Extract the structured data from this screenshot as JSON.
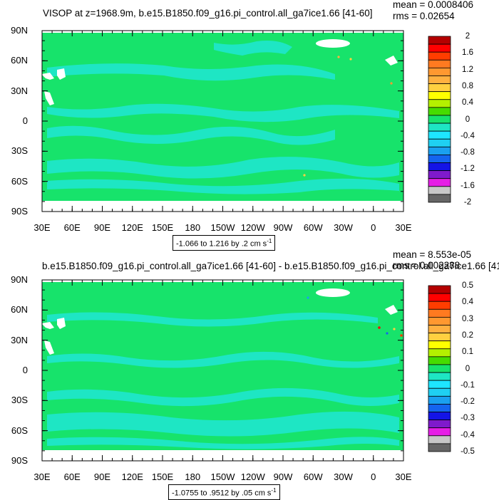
{
  "colors": {
    "ocean_main": "#17e36b",
    "ocean_light": "#1ee6c4",
    "land": "#ffffff",
    "frame": "#000000"
  },
  "palette": [
    "#666666",
    "#c8c8c8",
    "#e61ee6",
    "#7f1acc",
    "#1414e6",
    "#1464ef",
    "#1aa0f0",
    "#1fd0f2",
    "#1ee6ff",
    "#1ee6c4",
    "#17e36b",
    "#46dc00",
    "#b4f000",
    "#ffff00",
    "#ffd040",
    "#ffb040",
    "#ff9830",
    "#ff7a20",
    "#ff3d00",
    "#ff0000",
    "#b40000"
  ],
  "panels": [
    {
      "title": "VISOP at z=1968.9m, b.e15.B1850.f09_g16.pi_control.all_ga7ice1.66 [41-60]",
      "mean_text": "mean = 0.0008406",
      "rms_text": "rms = 0.02654",
      "range_text": "-1.066 to 1.216 by .2 cm s",
      "range_sup": "-1",
      "colorbar_labels": [
        "2",
        "1.6",
        "1.2",
        "0.8",
        "0.4",
        "0",
        "-0.4",
        "-0.8",
        "-1.2",
        "-1.6",
        "-2"
      ]
    },
    {
      "title": "b.e15.B1850.f09_g16.pi_control.all_ga7ice1.66 [41-60] - b.e15.B1850.f09_g16.pi_control.all_ga7ice1.66 [41-",
      "mean_text": "mean = 8.553e-05",
      "rms_text": "rms = 0.002288",
      "range_text": "-1.0755 to .9512 by .05 cm s",
      "range_sup": "-1",
      "colorbar_labels": [
        "0.5",
        "0.4",
        "0.3",
        "0.2",
        "0.1",
        "0",
        "-0.1",
        "-0.2",
        "-0.3",
        "-0.4",
        "-0.5"
      ]
    }
  ],
  "chart_data": [
    {
      "type": "heatmap",
      "title": "VISOP at z=1968.9m, b.e15.B1850.f09_g16.pi_control.all_ga7ice1.66 [41-60]",
      "x_ticks": [
        "30E",
        "60E",
        "90E",
        "120E",
        "150E",
        "180",
        "150W",
        "120W",
        "90W",
        "60W",
        "30W",
        "0",
        "30E"
      ],
      "y_ticks": [
        "90N",
        "60N",
        "30N",
        "0",
        "30S",
        "60S",
        "90S"
      ],
      "levels": [
        -2,
        -1.6,
        -1.2,
        -0.8,
        -0.4,
        0,
        0.4,
        0.8,
        1.2,
        1.6,
        2
      ],
      "mean": 0.0008406,
      "rms": 0.02654,
      "data_range": [
        -1.066,
        1.216
      ],
      "units": "cm s-1",
      "legend_placement": "right"
    },
    {
      "type": "heatmap",
      "title": "b.e15.B1850.f09_g16.pi_control.all_ga7ice1.66 [41-60] - b.e15.B1850.f09_g16.pi_control.all_ga7ice1.66 [41-",
      "x_ticks": [
        "30E",
        "60E",
        "90E",
        "120E",
        "150E",
        "180",
        "150W",
        "120W",
        "90W",
        "60W",
        "30W",
        "0",
        "30E"
      ],
      "y_ticks": [
        "90N",
        "60N",
        "30N",
        "0",
        "30S",
        "60S",
        "90S"
      ],
      "levels": [
        -0.5,
        -0.4,
        -0.3,
        -0.2,
        -0.1,
        0,
        0.1,
        0.2,
        0.3,
        0.4,
        0.5
      ],
      "mean": 8.553e-05,
      "rms": 0.002288,
      "data_range": [
        -1.0755,
        0.9512
      ],
      "units": "cm s-1",
      "legend_placement": "right"
    }
  ]
}
